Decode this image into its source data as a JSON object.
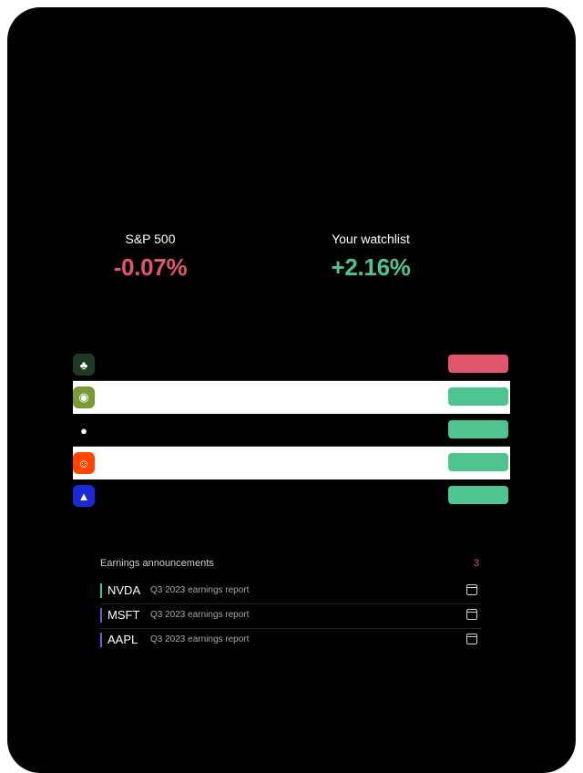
{
  "summary": {
    "sp500_label": "S&P 500",
    "sp500_value": "-0.07%",
    "watchlist_label": "Your watchlist",
    "watchlist_value": "+2.16%"
  },
  "earnings": {
    "title": "Earnings announcements",
    "count": "3",
    "items": [
      {
        "symbol": "NVDA",
        "description": "Q3 2023 earnings report",
        "color": "#4fc491"
      },
      {
        "symbol": "MSFT",
        "description": "Q3 2023 earnings report",
        "color": "#6b5fd6"
      },
      {
        "symbol": "AAPL",
        "description": "Q3 2023 earnings report",
        "color": "#6b5fd6"
      }
    ]
  },
  "colors": {
    "negative": "#e0566c",
    "positive": "#4fc491",
    "frame": "#000000"
  }
}
